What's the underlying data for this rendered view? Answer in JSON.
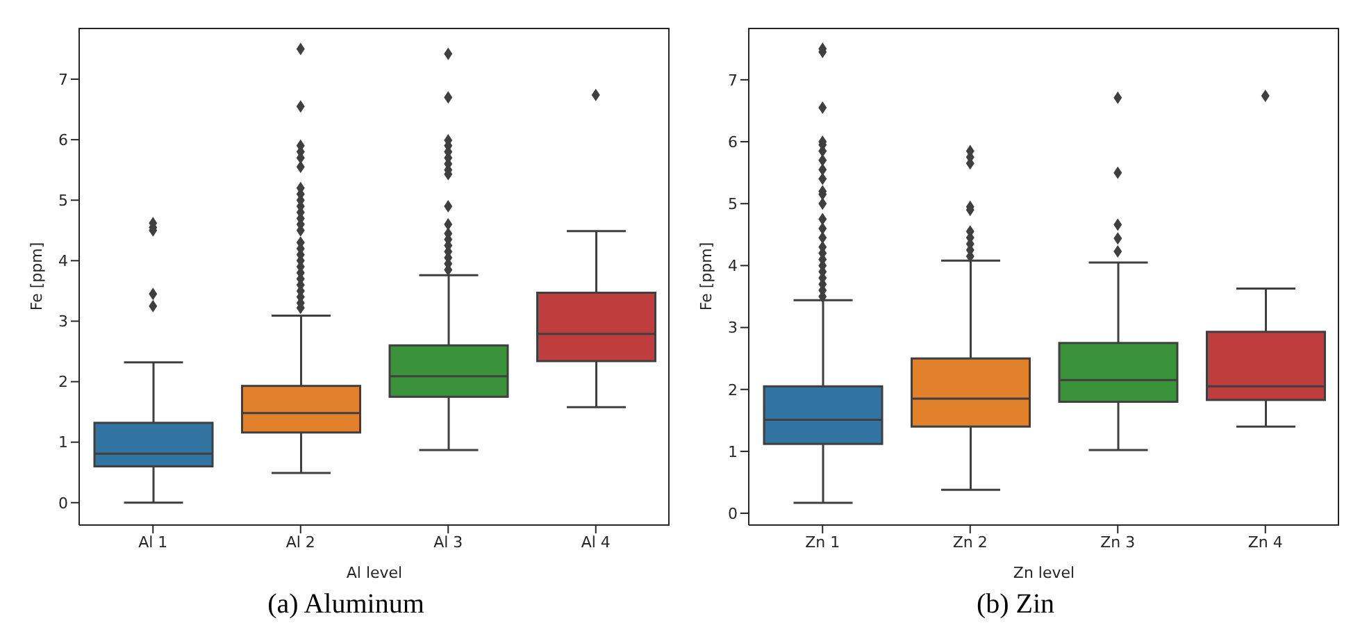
{
  "chart_data": [
    {
      "type": "box",
      "xlabel": "Al level",
      "ylabel": "Fe [ppm]",
      "categories": [
        "Al 1",
        "Al 2",
        "Al 3",
        "Al 4"
      ],
      "colors": [
        "#3274a1",
        "#e1812c",
        "#3a923a",
        "#c03d3e"
      ],
      "ylim": [
        -0.37,
        7.85
      ],
      "yticks": [
        0,
        1,
        2,
        3,
        4,
        5,
        6,
        7
      ],
      "grid": false,
      "marker": "diamond",
      "annotations": [
        "(a) Aluminum"
      ],
      "boxes": [
        {
          "low": 0,
          "q1": 0.6,
          "median": 0.81,
          "q3": 1.32,
          "high": 2.32,
          "outliers": [
            3.25,
            3.45,
            4.5,
            4.55,
            4.62
          ]
        },
        {
          "low": 0.49,
          "q1": 1.16,
          "median": 1.48,
          "q3": 1.93,
          "high": 3.09,
          "outliers": [
            3.22,
            3.3,
            3.4,
            3.5,
            3.6,
            3.7,
            3.8,
            3.9,
            4.0,
            4.1,
            4.2,
            4.3,
            4.5,
            4.6,
            4.7,
            4.8,
            4.9,
            5.0,
            5.1,
            5.2,
            5.55,
            5.7,
            5.8,
            5.9,
            6.55,
            7.5
          ]
        },
        {
          "low": 0.87,
          "q1": 1.75,
          "median": 2.09,
          "q3": 2.6,
          "high": 3.76,
          "outliers": [
            3.85,
            3.95,
            4.05,
            4.15,
            4.25,
            4.35,
            4.45,
            4.6,
            4.9,
            5.43,
            5.5,
            5.6,
            5.7,
            5.8,
            5.9,
            5.99,
            6.7,
            7.42
          ]
        },
        {
          "low": 1.58,
          "q1": 2.34,
          "median": 2.79,
          "q3": 3.47,
          "high": 4.49,
          "outliers": [
            6.74
          ]
        }
      ]
    },
    {
      "type": "box",
      "xlabel": "Zn level",
      "ylabel": "Fe [ppm]",
      "categories": [
        "Zn 1",
        "Zn 2",
        "Zn 3",
        "Zn 4"
      ],
      "colors": [
        "#3274a1",
        "#e1812c",
        "#3a923a",
        "#c03d3e"
      ],
      "ylim": [
        -0.19,
        7.84
      ],
      "yticks": [
        0,
        1,
        2,
        3,
        4,
        5,
        6,
        7
      ],
      "grid": false,
      "marker": "diamond",
      "annotations": [
        "(b) Zin"
      ],
      "boxes": [
        {
          "low": 0.17,
          "q1": 1.12,
          "median": 1.51,
          "q3": 2.05,
          "high": 3.44,
          "outliers": [
            3.5,
            3.6,
            3.7,
            3.8,
            3.9,
            4.0,
            4.1,
            4.2,
            4.3,
            4.45,
            4.6,
            4.75,
            5.0,
            5.15,
            5.2,
            5.4,
            5.55,
            5.7,
            5.85,
            5.95,
            6.0,
            6.55,
            7.45,
            7.5
          ]
        },
        {
          "low": 0.38,
          "q1": 1.4,
          "median": 1.85,
          "q3": 2.5,
          "high": 4.08,
          "outliers": [
            4.15,
            4.25,
            4.35,
            4.45,
            4.55,
            4.9,
            4.95,
            5.65,
            5.75,
            5.85
          ]
        },
        {
          "low": 1.02,
          "q1": 1.8,
          "median": 2.15,
          "q3": 2.75,
          "high": 4.05,
          "outliers": [
            4.23,
            4.44,
            4.66,
            5.5,
            6.71
          ]
        },
        {
          "low": 1.4,
          "q1": 1.83,
          "median": 2.05,
          "q3": 2.93,
          "high": 3.63,
          "outliers": [
            6.74
          ]
        }
      ]
    }
  ]
}
